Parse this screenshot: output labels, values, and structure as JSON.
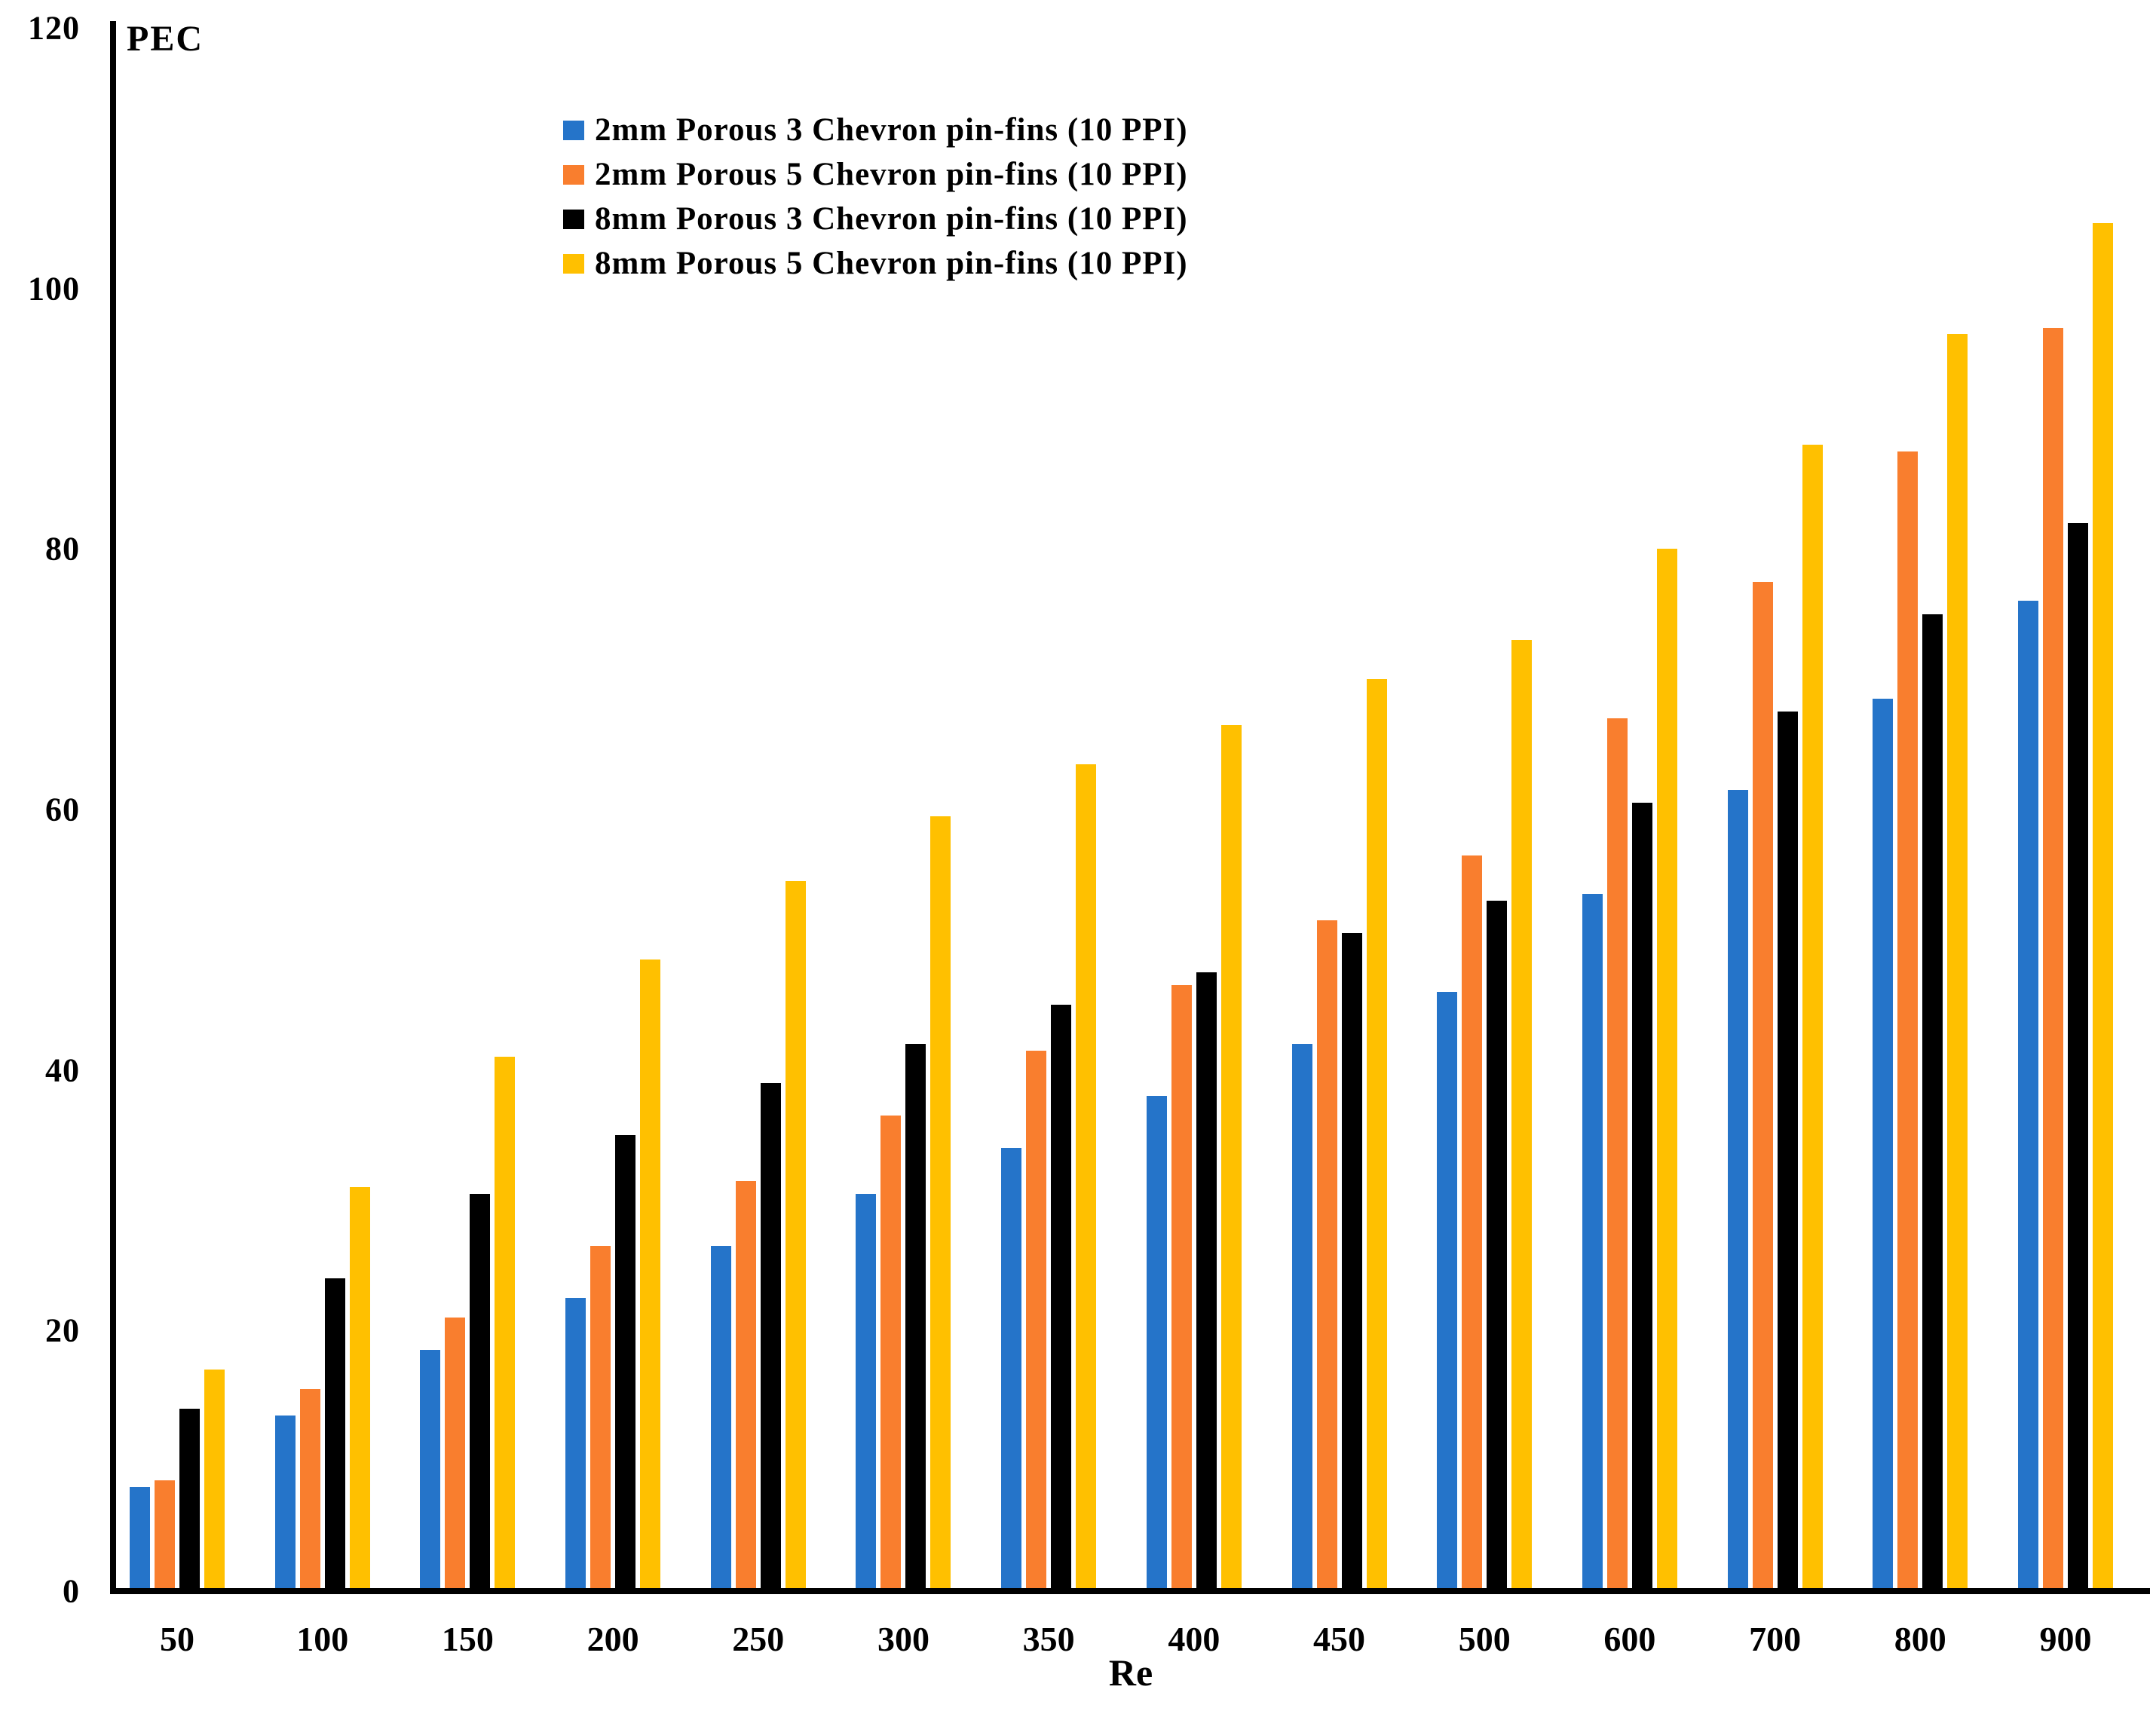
{
  "axes": {
    "y_title": "PEC",
    "x_title": "Re",
    "y_ticks": [
      0,
      20,
      40,
      60,
      80,
      100,
      120
    ]
  },
  "colors": {
    "blue": "#2574C9",
    "orange": "#F97E2E",
    "black": "#000000",
    "yellow": "#FFC000",
    "axis": "#000000",
    "background": "#FFFFFF"
  },
  "chart_data": {
    "type": "bar",
    "title": "",
    "xlabel": "Re",
    "ylabel": "PEC",
    "ylim": [
      0,
      120
    ],
    "grid": false,
    "legend_position": "top-center-left",
    "categories": [
      "50",
      "100",
      "150",
      "200",
      "250",
      "300",
      "350",
      "400",
      "450",
      "500",
      "600",
      "700",
      "800",
      "900"
    ],
    "series": [
      {
        "name": "2mm Porous 3 Chevron pin-fins (10 PPI)",
        "color": "#2574C9",
        "values": [
          8,
          13.5,
          18.5,
          22.5,
          26.5,
          30.5,
          34,
          38,
          42,
          46,
          53.5,
          61.5,
          68.5,
          76
        ]
      },
      {
        "name": "2mm Porous 5 Chevron pin-fins (10 PPI)",
        "color": "#F97E2E",
        "values": [
          8.5,
          15.5,
          21,
          26.5,
          31.5,
          36.5,
          41.5,
          46.5,
          51.5,
          56.5,
          67,
          77.5,
          87.5,
          97
        ]
      },
      {
        "name": "8mm Porous 3 Chevron pin-fins (10 PPI)",
        "color": "#000000",
        "values": [
          14,
          24,
          30.5,
          35,
          39,
          42,
          45,
          47.5,
          50.5,
          53,
          60.5,
          67.5,
          75,
          82
        ]
      },
      {
        "name": "8mm Porous 5 Chevron pin-fins (10 PPI)",
        "color": "#FFC000",
        "values": [
          17,
          31,
          41,
          48.5,
          54.5,
          59.5,
          63.5,
          66.5,
          70,
          73,
          80,
          88,
          96.5,
          105
        ]
      }
    ]
  }
}
